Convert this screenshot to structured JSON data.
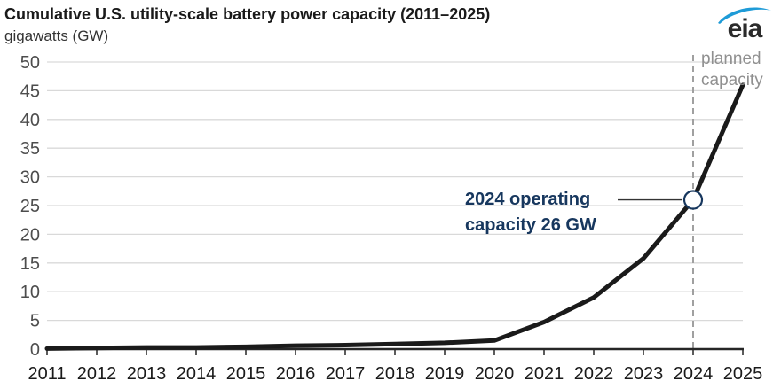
{
  "header": {
    "title": "Cumulative U.S. utility-scale battery power capacity (2011–2025)",
    "subtitle": "gigawatts (GW)"
  },
  "logo": {
    "text": "eia",
    "swoosh_color": "#1e9bd7"
  },
  "chart_data": {
    "type": "line",
    "title": "Cumulative U.S. utility-scale battery power capacity (2011–2025)",
    "ylabel": "gigawatts (GW)",
    "x": [
      2011,
      2012,
      2013,
      2014,
      2015,
      2016,
      2017,
      2018,
      2019,
      2020,
      2021,
      2022,
      2023,
      2024,
      2025
    ],
    "series": [
      {
        "name": "Cumulative battery power capacity (GW)",
        "values": [
          0.1,
          0.2,
          0.3,
          0.3,
          0.4,
          0.6,
          0.7,
          0.9,
          1.1,
          1.5,
          4.7,
          9.0,
          15.8,
          26,
          46
        ]
      }
    ],
    "ylim": [
      0,
      50
    ],
    "ytick_step": 5,
    "grid": "horizontal",
    "legend": "none",
    "planned_boundary_year": 2024,
    "planned_label": "planned\ncapacity",
    "annotation": {
      "text": "2024 operating\ncapacity 26 GW",
      "year": 2024,
      "value": 26
    }
  },
  "colors": {
    "line": "#1a1a1a",
    "gridline": "#d9d9d9",
    "axis": "#262626",
    "y_tick_label": "#4d4d4d",
    "x_tick_label": "#1a1a1a",
    "dashed_line": "#a0a0a0",
    "annotation_navy": "#17375e",
    "marker_fill": "#ffffff",
    "connector": "#333333"
  }
}
